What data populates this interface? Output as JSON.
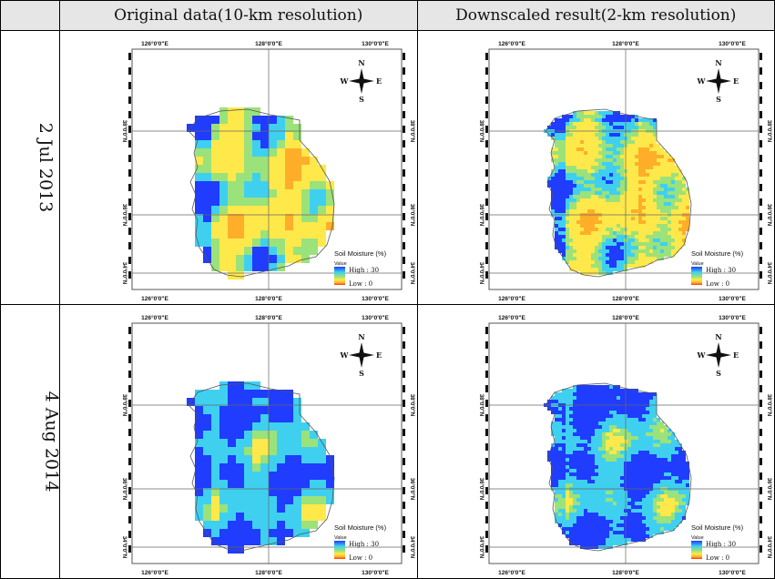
{
  "header": {
    "corner": "",
    "col_original": "Original data(10-km resolution)",
    "col_downscaled": "Downscaled result(2-km resolution)"
  },
  "rows": [
    {
      "date": "2 Jul 2013"
    },
    {
      "date": "4 Aug 2014"
    }
  ],
  "map_labels": {
    "lon_ticks": [
      "126°0'0\"E",
      "128°0'0\"E",
      "130°0'0\"E"
    ],
    "lat_ticks": [
      "38°0'0\"N",
      "36°0'0\"N",
      "34°0'0\"N"
    ],
    "compass": {
      "n": "N",
      "s": "S",
      "e": "E",
      "w": "W"
    }
  },
  "legend": {
    "title": "Soil Moisture (%)",
    "value_label": "Value",
    "high": "High : 30",
    "low": "Low : 0"
  },
  "colors": {
    "wet": "#1f3cff",
    "cyan": "#3fd0f0",
    "green": "#9be27a",
    "yellow": "#ffe94a",
    "orange": "#ffae2a",
    "dry": "#ff3a00"
  }
}
